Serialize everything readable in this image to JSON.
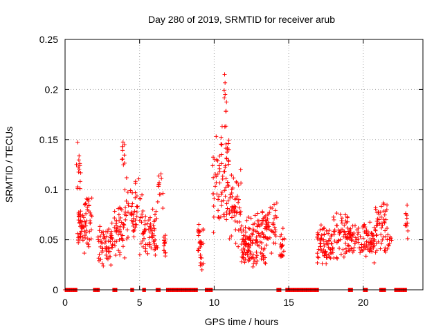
{
  "chart_data": {
    "type": "scatter",
    "title": "Day 280 of 2019, SRMTID for receiver arub",
    "xlabel": "GPS time / hours",
    "ylabel": "SRMTID / TECUs",
    "xlim": [
      0,
      24
    ],
    "ylim": [
      0,
      0.25
    ],
    "grid": true,
    "marker": "+",
    "color": "#ff0000",
    "x_ticks": [
      0,
      5,
      10,
      15,
      20
    ],
    "x_tick_labels": [
      "0",
      "5",
      "10",
      "15",
      "20"
    ],
    "y_ticks": [
      0,
      0.05,
      0.1,
      0.15,
      0.2,
      0.25
    ],
    "y_tick_labels": [
      "0",
      "0.05",
      "0.1",
      "0.15",
      "0.2",
      "0.25"
    ],
    "zero_value_segments": [
      [
        0.0,
        0.8
      ],
      [
        1.9,
        2.3
      ],
      [
        3.2,
        3.5
      ],
      [
        4.4,
        4.6
      ],
      [
        5.2,
        5.4
      ],
      [
        6.1,
        6.4
      ],
      [
        6.8,
        8.9
      ],
      [
        9.4,
        9.9
      ],
      [
        14.2,
        14.5
      ],
      [
        14.8,
        17.0
      ],
      [
        19.0,
        19.3
      ],
      [
        20.0,
        20.3
      ],
      [
        21.1,
        21.5
      ],
      [
        22.1,
        22.9
      ]
    ],
    "clusters": [
      {
        "x_range": [
          0.75,
          1.05
        ],
        "y_range": [
          0.09,
          0.15
        ],
        "count": 14
      },
      {
        "x_range": [
          0.8,
          1.8
        ],
        "y_range": [
          0.03,
          0.1
        ],
        "count": 75
      },
      {
        "x_range": [
          2.2,
          3.2
        ],
        "y_range": [
          0.02,
          0.07
        ],
        "count": 60
      },
      {
        "x_range": [
          3.3,
          4.0
        ],
        "y_range": [
          0.03,
          0.09
        ],
        "count": 45
      },
      {
        "x_range": [
          3.8,
          4.0
        ],
        "y_range": [
          0.12,
          0.153
        ],
        "count": 10
      },
      {
        "x_range": [
          4.0,
          5.2
        ],
        "y_range": [
          0.03,
          0.12
        ],
        "count": 60
      },
      {
        "x_range": [
          5.2,
          6.2
        ],
        "y_range": [
          0.03,
          0.085
        ],
        "count": 60
      },
      {
        "x_range": [
          6.2,
          6.6
        ],
        "y_range": [
          0.07,
          0.12
        ],
        "count": 12
      },
      {
        "x_range": [
          6.6,
          6.8
        ],
        "y_range": [
          0.03,
          0.065
        ],
        "count": 14
      },
      {
        "x_range": [
          8.9,
          9.3
        ],
        "y_range": [
          0.012,
          0.07
        ],
        "count": 30
      },
      {
        "x_range": [
          9.9,
          10.4
        ],
        "y_range": [
          0.05,
          0.16
        ],
        "count": 30
      },
      {
        "x_range": [
          10.4,
          11.0
        ],
        "y_range": [
          0.06,
          0.17
        ],
        "count": 50
      },
      {
        "x_range": [
          10.65,
          10.85
        ],
        "y_range": [
          0.16,
          0.222
        ],
        "count": 9
      },
      {
        "x_range": [
          11.0,
          11.8
        ],
        "y_range": [
          0.03,
          0.13
        ],
        "count": 50
      },
      {
        "x_range": [
          11.8,
          12.6
        ],
        "y_range": [
          0.02,
          0.075
        ],
        "count": 70
      },
      {
        "x_range": [
          12.6,
          13.5
        ],
        "y_range": [
          0.02,
          0.085
        ],
        "count": 70
      },
      {
        "x_range": [
          13.5,
          14.2
        ],
        "y_range": [
          0.03,
          0.095
        ],
        "count": 40
      },
      {
        "x_range": [
          14.4,
          14.7
        ],
        "y_range": [
          0.025,
          0.065
        ],
        "count": 22
      },
      {
        "x_range": [
          16.9,
          18.0
        ],
        "y_range": [
          0.022,
          0.068
        ],
        "count": 70
      },
      {
        "x_range": [
          18.0,
          19.0
        ],
        "y_range": [
          0.025,
          0.09
        ],
        "count": 60
      },
      {
        "x_range": [
          19.0,
          20.0
        ],
        "y_range": [
          0.03,
          0.068
        ],
        "count": 50
      },
      {
        "x_range": [
          20.0,
          20.8
        ],
        "y_range": [
          0.025,
          0.07
        ],
        "count": 50
      },
      {
        "x_range": [
          20.8,
          21.6
        ],
        "y_range": [
          0.03,
          0.098
        ],
        "count": 50
      },
      {
        "x_range": [
          21.6,
          21.9
        ],
        "y_range": [
          0.035,
          0.06
        ],
        "count": 10
      },
      {
        "x_range": [
          22.8,
          23.0
        ],
        "y_range": [
          0.042,
          0.095
        ],
        "count": 12
      }
    ]
  }
}
